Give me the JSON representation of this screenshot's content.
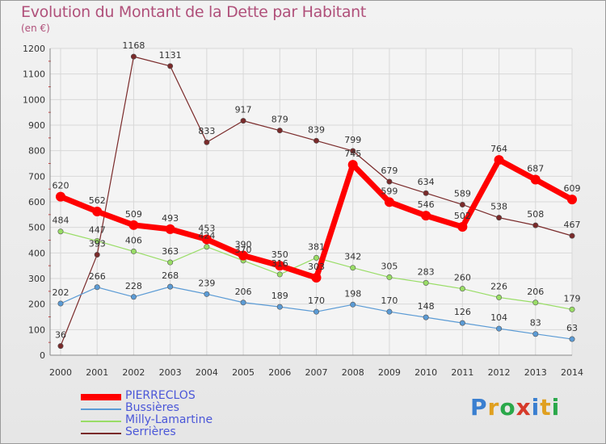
{
  "title": "Evolution du Montant de la Dette par Habitant",
  "unit": "(en €)",
  "brand": "Proxiti",
  "chart_data": {
    "type": "line",
    "x": [
      "2000",
      "2001",
      "2002",
      "2003",
      "2004",
      "2005",
      "2006",
      "2007",
      "2008",
      "2009",
      "2010",
      "2011",
      "2012",
      "2013",
      "2014"
    ],
    "ylim": [
      0,
      1200
    ],
    "yticks": [
      0,
      100,
      200,
      300,
      400,
      500,
      600,
      700,
      800,
      900,
      1000,
      1100,
      1200
    ],
    "grid": true,
    "legend_position": "bottom-left",
    "series": [
      {
        "name": "PIERRECLOS",
        "color": "#ff0000",
        "values": [
          620,
          562,
          509,
          493,
          453,
          390,
          350,
          303,
          745,
          599,
          546,
          502,
          764,
          687,
          609
        ],
        "labels": [
          "620",
          "562",
          "509",
          "493",
          "453",
          "390",
          "350",
          "303",
          "745",
          "599",
          "546",
          "502",
          "764",
          "687",
          "609"
        ]
      },
      {
        "name": "Bussières",
        "color": "#5b9bd5",
        "values": [
          202,
          266,
          228,
          268,
          239,
          206,
          189,
          170,
          198,
          170,
          148,
          126,
          104,
          83,
          63
        ],
        "labels": [
          "202",
          "266",
          "228",
          "268",
          "239",
          "206",
          "189",
          "170",
          "198",
          "170",
          "148",
          "126",
          "104",
          "83",
          "63"
        ]
      },
      {
        "name": "Milly-Lamartine",
        "color": "#99dd66",
        "values": [
          484,
          447,
          406,
          363,
          424,
          370,
          316,
          381,
          342,
          305,
          283,
          260,
          226,
          206,
          179
        ],
        "labels": [
          "484",
          "447",
          "406",
          "363",
          "424",
          "370",
          "316",
          "381",
          "342",
          "305",
          "283",
          "260",
          "226",
          "206",
          "179"
        ]
      },
      {
        "name": "Serrières",
        "color": "#7a2a2a",
        "values": [
          36,
          393,
          1168,
          1131,
          833,
          917,
          879,
          839,
          799,
          679,
          634,
          589,
          538,
          508,
          467
        ],
        "labels": [
          "36",
          "393",
          "1168",
          "1131",
          "833",
          "917",
          "879",
          "839",
          "799",
          "679",
          "634",
          "589",
          "538",
          "508",
          "467"
        ]
      }
    ]
  }
}
